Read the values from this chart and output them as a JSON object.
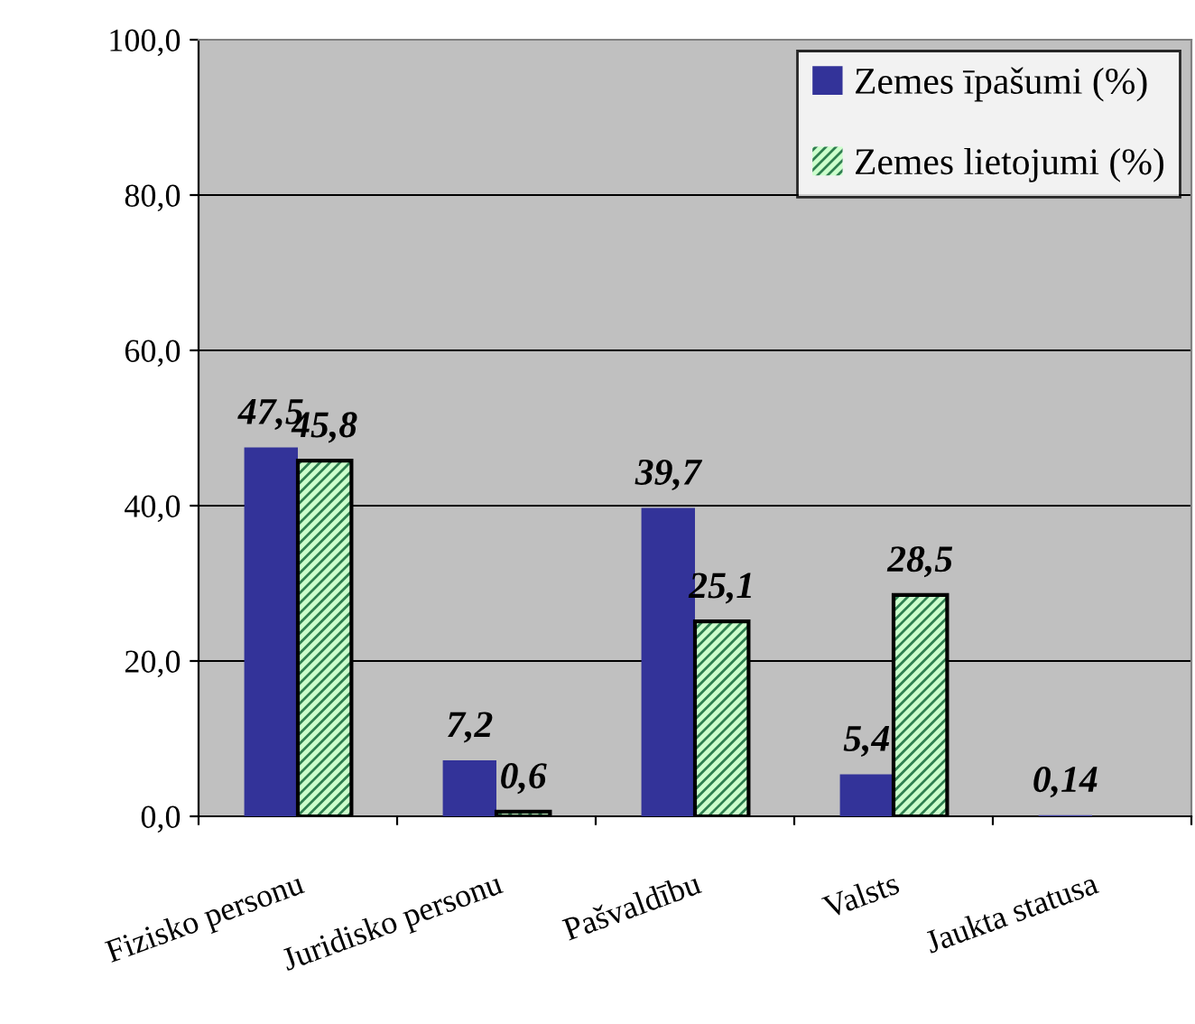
{
  "chart_data": {
    "type": "bar",
    "categories": [
      "Fizisko personu",
      "Juridisko personu",
      "Pašvaldību",
      "Valsts",
      "Jaukta statusa"
    ],
    "series": [
      {
        "name": "Zemes īpašumi (%)",
        "color": "#333399",
        "values": [
          47.5,
          7.2,
          39.7,
          5.4,
          0.14
        ],
        "value_labels": [
          "47,5",
          "7,2",
          "39,7",
          "5,4",
          "0,14"
        ]
      },
      {
        "name": "Zemes lietojumi (%)",
        "color": "#ccffcc",
        "values": [
          45.8,
          0.6,
          25.1,
          28.5,
          null
        ],
        "value_labels": [
          "45,8",
          "0,6",
          "25,1",
          "28,5",
          null
        ]
      }
    ],
    "ylim": [
      0,
      100
    ],
    "yticks": [
      {
        "value": 0,
        "label": "0,0"
      },
      {
        "value": 20,
        "label": "20,0"
      },
      {
        "value": 40,
        "label": "40,0"
      },
      {
        "value": 60,
        "label": "60,0"
      },
      {
        "value": 80,
        "label": "80,0"
      },
      {
        "value": 100,
        "label": "100,0"
      }
    ],
    "grid": "y",
    "legend": "top right"
  }
}
